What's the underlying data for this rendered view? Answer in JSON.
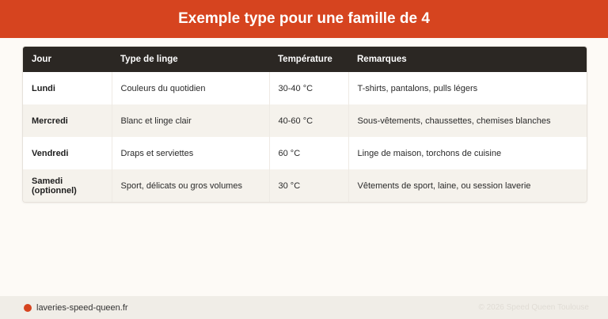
{
  "header": {
    "title": "Exemple type pour une famille de 4"
  },
  "table": {
    "columns": [
      "Jour",
      "Type de linge",
      "Température",
      "Remarques"
    ],
    "rows": [
      [
        "Lundi",
        "Couleurs du quotidien",
        "30-40 °C",
        "T-shirts, pantalons, pulls légers"
      ],
      [
        "Mercredi",
        "Blanc et linge clair",
        "40-60 °C",
        "Sous-vêtements, chaussettes, chemises blanches"
      ],
      [
        "Vendredi",
        "Draps et serviettes",
        "60 °C",
        "Linge de maison, torchons de cuisine"
      ],
      [
        "Samedi (optionnel)",
        "Sport, délicats ou gros volumes",
        "30 °C",
        "Vêtements de sport, laine, ou session laverie"
      ]
    ]
  },
  "footer": {
    "site": "laveries-speed-queen.fr",
    "copyright": "© 2026 Speed Queen Toulouse"
  },
  "colors": {
    "accent": "#d6441f",
    "table_header": "#2b2723"
  }
}
